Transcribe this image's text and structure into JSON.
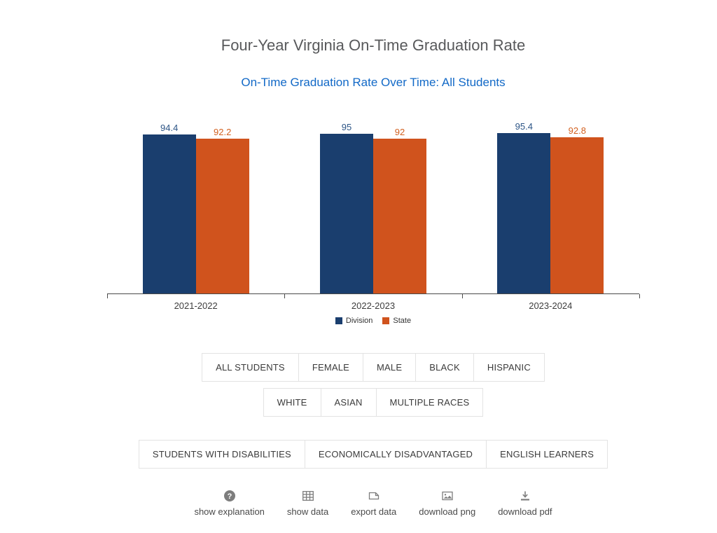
{
  "page": {
    "title": "Four-Year Virginia On-Time Graduation Rate",
    "subtitle": "On-Time Graduation Rate Over Time: All Students"
  },
  "chart_data": {
    "type": "bar",
    "title": "On-Time Graduation Rate Over Time: All Students",
    "categories": [
      "2021-2022",
      "2022-2023",
      "2023-2024"
    ],
    "series": [
      {
        "name": "Division",
        "color": "#1a3e6e",
        "label_color": "#2d5586",
        "values": [
          94.4,
          95,
          95.4
        ]
      },
      {
        "name": "State",
        "color": "#d0531d",
        "label_color": "#d2601f",
        "values": [
          92.2,
          92,
          92.8
        ]
      }
    ],
    "xlabel": "",
    "ylabel": "",
    "ylim": [
      0,
      105
    ],
    "grid": false,
    "legend_position": "bottom",
    "value_labels": true
  },
  "filters": {
    "rows": [
      {
        "buttons": [
          "ALL STUDENTS",
          "FEMALE",
          "MALE",
          "BLACK",
          "HISPANIC"
        ]
      },
      {
        "buttons": [
          "WHITE",
          "ASIAN",
          "MULTIPLE RACES"
        ]
      },
      {
        "buttons": [
          "STUDENTS WITH DISABILITIES",
          "ECONOMICALLY DISADVANTAGED",
          "ENGLISH LEARNERS"
        ]
      }
    ]
  },
  "toolbar": {
    "items": [
      {
        "icon": "help-icon",
        "label": "show explanation"
      },
      {
        "icon": "table-icon",
        "label": "show data"
      },
      {
        "icon": "export-icon",
        "label": "export data"
      },
      {
        "icon": "image-icon",
        "label": "download png"
      },
      {
        "icon": "download-icon",
        "label": "download pdf"
      }
    ]
  },
  "colors": {
    "division": "#1a3e6e",
    "state": "#d0531d",
    "subtitle_blue": "#1269c7",
    "title_gray": "#58595b",
    "icon_gray": "#7d7d7d"
  }
}
